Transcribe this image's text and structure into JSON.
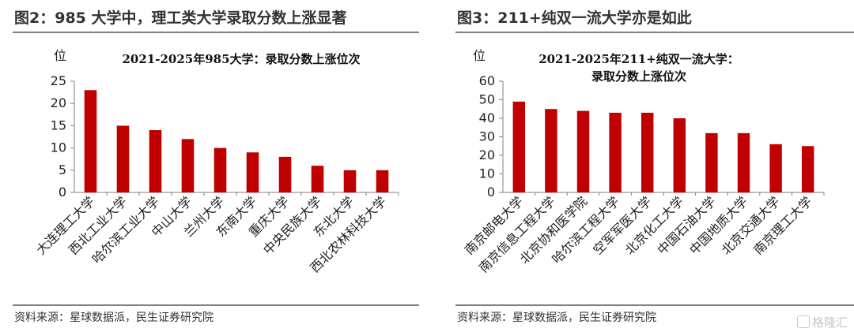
{
  "colors": {
    "bar": "#c00000",
    "axis": "#7f7f7f"
  },
  "left": {
    "fig_title": "图2：985 大学中，理工类大学录取分数上涨显著",
    "source": "资料来源：星球数据派，民生证券研究院",
    "unit": "位"
  },
  "right": {
    "fig_title": "图3：211+纯双一流大学亦是如此",
    "source": "资料来源：星球数据派，民生证券研究院",
    "unit": "位"
  },
  "watermark": {
    "text": "格隆汇",
    "icon": "glh-logo-icon"
  },
  "chart_data": [
    {
      "type": "bar",
      "title": "2021-2025年985大学：录取分数上涨位次",
      "ylabel": "位",
      "ylim": [
        0,
        25
      ],
      "yticks": [
        0,
        5,
        10,
        15,
        20,
        25
      ],
      "categories": [
        "大连理工大学",
        "西北工业大学",
        "哈尔滨工业大学",
        "中山大学",
        "兰州大学",
        "东南大学",
        "重庆大学",
        "中央民族大学",
        "东北大学",
        "西北农林科技大学"
      ],
      "values": [
        23,
        15,
        14,
        12,
        10,
        9,
        8,
        6,
        5,
        5
      ],
      "grid": false,
      "legend": "none"
    },
    {
      "type": "bar",
      "title": "2021-2025年211+纯双一流大学：",
      "title_line2": "录取分数上涨位次",
      "ylabel": "位",
      "ylim": [
        0,
        60
      ],
      "yticks": [
        0,
        10,
        20,
        30,
        40,
        50,
        60
      ],
      "categories": [
        "南京邮电大学",
        "南京信息工程大学",
        "北京协和医学院",
        "哈尔滨工程大学",
        "空军军医大学",
        "北京化工大学",
        "中国石油大学",
        "中国地质大学",
        "北京交通大学",
        "南京理工大学"
      ],
      "values": [
        49,
        45,
        44,
        43,
        43,
        40,
        32,
        32,
        26,
        25
      ],
      "grid": false,
      "legend": "none"
    }
  ]
}
